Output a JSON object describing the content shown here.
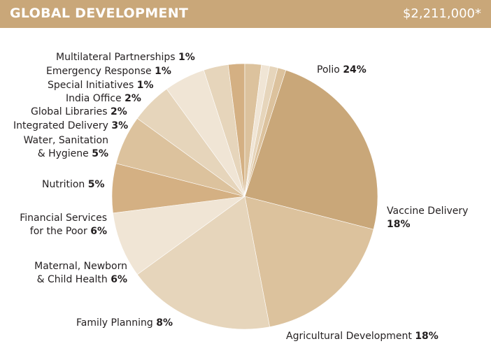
{
  "header": {
    "title": "GLOBAL DEVELOPMENT",
    "total": "$2,211,000*"
  },
  "chart_data": {
    "type": "pie",
    "title": "GLOBAL DEVELOPMENT",
    "total": "$2,211,000*",
    "slices": [
      {
        "name": "Polio",
        "value": 24,
        "label": "24%",
        "color": "#c9a779"
      },
      {
        "name": "Vaccine Delivery",
        "value": 18,
        "label": "18%",
        "color": "#dcc29d"
      },
      {
        "name": "Agricultural Development",
        "value": 18,
        "label": "18%",
        "color": "#e6d5bb"
      },
      {
        "name": "Family Planning",
        "value": 8,
        "label": "8%",
        "color": "#f0e5d5"
      },
      {
        "name": "Maternal, Newborn & Child Health",
        "value": 6,
        "label": "6%",
        "color": "#d4b083"
      },
      {
        "name": "Financial Services for the Poor",
        "value": 6,
        "label": "6%",
        "color": "#dcc29d"
      },
      {
        "name": "Nutrition",
        "value": 5,
        "label": "5%",
        "color": "#e6d5bb"
      },
      {
        "name": "Water, Sanitation & Hygiene",
        "value": 5,
        "label": "5%",
        "color": "#f0e5d5"
      },
      {
        "name": "Integrated Delivery",
        "value": 3,
        "label": "3%",
        "color": "#e6d5bb"
      },
      {
        "name": "Global Libraries",
        "value": 2,
        "label": "2%",
        "color": "#d4b083"
      },
      {
        "name": "India Office",
        "value": 2,
        "label": "2%",
        "color": "#dcc29d"
      },
      {
        "name": "Special Initiatives",
        "value": 1,
        "label": "1%",
        "color": "#f0e5d5"
      },
      {
        "name": "Emergency Response",
        "value": 1,
        "label": "1%",
        "color": "#e6d5bb"
      },
      {
        "name": "Multilateral Partnerships",
        "value": 1,
        "label": "1%",
        "color": "#dcc29d"
      }
    ]
  },
  "labels": {
    "polio": {
      "text": "Polio",
      "pct": "24%"
    },
    "vaccine": {
      "line1": "Vaccine Delivery",
      "pct": "18%"
    },
    "agri": {
      "text": "Agricultural Development",
      "pct": "18%"
    },
    "family": {
      "text": "Family Planning",
      "pct": "8%"
    },
    "maternal": {
      "line1": "Maternal, Newborn",
      "line2": "& Child Health",
      "pct": "6%"
    },
    "financial": {
      "line1": "Financial Services",
      "line2": "for the Poor",
      "pct": "6%"
    },
    "nutrition": {
      "text": "Nutrition",
      "pct": "5%"
    },
    "water": {
      "line1": "Water, Sanitation",
      "line2": "& Hygiene",
      "pct": "5%"
    },
    "integrated": {
      "text": "Integrated Delivery",
      "pct": "3%"
    },
    "libraries": {
      "text": "Global Libraries",
      "pct": "2%"
    },
    "india": {
      "text": "India Office",
      "pct": "2%"
    },
    "special": {
      "text": "Special Initiatives",
      "pct": "1%"
    },
    "emergency": {
      "text": "Emergency Response",
      "pct": "1%"
    },
    "multilateral": {
      "text": "Multilateral Partnerships",
      "pct": "1%"
    }
  }
}
